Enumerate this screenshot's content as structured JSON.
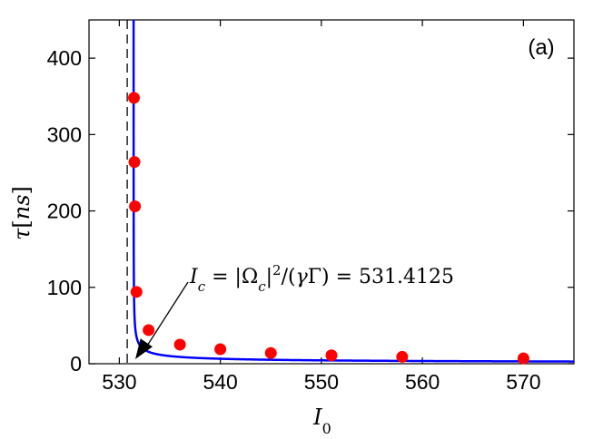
{
  "chart_data": {
    "type": "scatter",
    "panel_label": "(a)",
    "xlabel": "I₀",
    "ylabel": "τ[ns]",
    "xlim": [
      527,
      575
    ],
    "ylim": [
      0,
      450
    ],
    "x_ticks": [
      530,
      540,
      550,
      560,
      570
    ],
    "y_ticks": [
      0,
      100,
      200,
      300,
      400
    ],
    "critical_x": 531.4125,
    "annotation": {
      "text": "I_c = |Ω_c|²/(γΓ) = 531.4125",
      "points_to": [
        531.4,
        0
      ]
    },
    "series": [
      {
        "kind": "points",
        "color": "#ff0000",
        "x": [
          531.45,
          531.5,
          531.55,
          531.7,
          532.9,
          536,
          540,
          545,
          551,
          558,
          570
        ],
        "y": [
          348,
          264,
          206,
          94,
          44,
          25,
          19,
          14,
          11,
          9,
          7
        ]
      },
      {
        "kind": "fit-curve",
        "color": "#0000ff",
        "formula": "tau = 19 / sqrt(I0 - 531.4125)"
      }
    ],
    "grid": false
  }
}
